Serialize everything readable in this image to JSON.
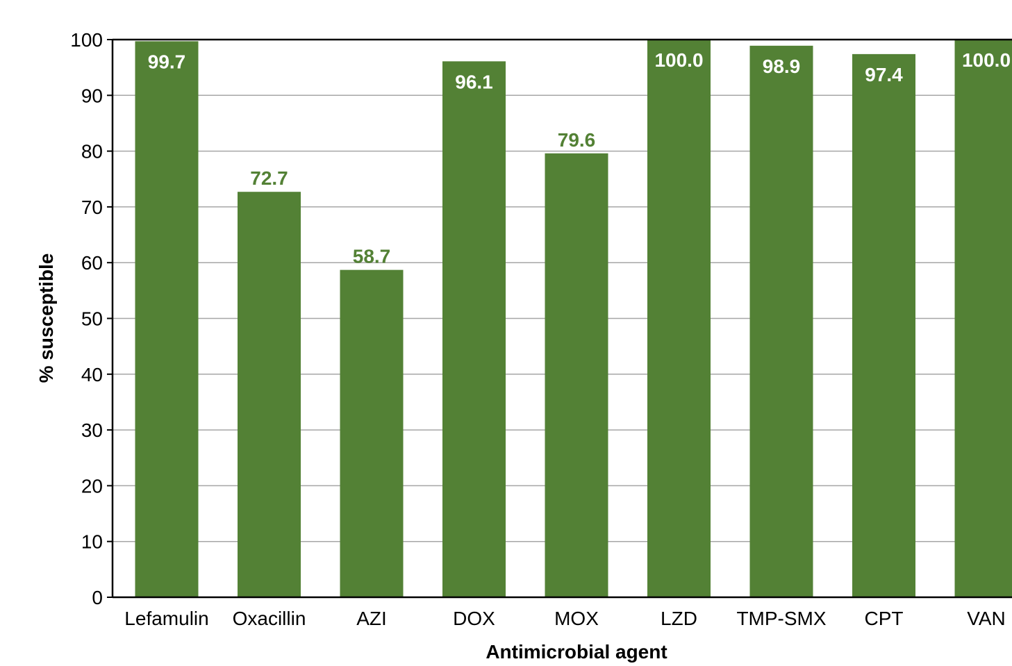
{
  "chart_data": {
    "type": "bar",
    "title": "",
    "xlabel": "Antimicrobial agent",
    "ylabel": "% susceptible",
    "categories": [
      "Lefamulin",
      "Oxacillin",
      "AZI",
      "DOX",
      "MOX",
      "LZD",
      "TMP-SMX",
      "CPT",
      "VAN"
    ],
    "values": [
      99.7,
      72.7,
      58.7,
      96.1,
      79.6,
      100.0,
      98.9,
      97.4,
      100.0
    ],
    "data_labels": [
      "99.7",
      "72.7",
      "58.7",
      "96.1",
      "79.6",
      "100.0",
      "98.9",
      "97.4",
      "100.0"
    ],
    "label_inside": [
      true,
      false,
      false,
      true,
      false,
      true,
      true,
      true,
      true
    ],
    "ylim": [
      0,
      100
    ],
    "yticks": [
      0,
      10,
      20,
      30,
      40,
      50,
      60,
      70,
      80,
      90,
      100
    ],
    "grid": true,
    "legend": "none",
    "colors": {
      "bar": "#538135",
      "label_inside": "#ffffff",
      "label_outside": "#538135",
      "grid": "#a6a6a6",
      "axis": "#000000",
      "text": "#000000"
    }
  }
}
